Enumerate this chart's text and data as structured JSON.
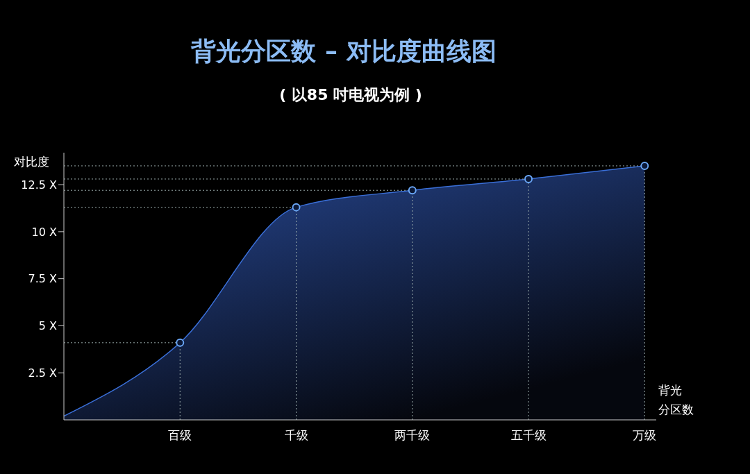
{
  "chart_data": {
    "type": "area",
    "title": "背光分区数 – 对比度曲线图",
    "subtitle": "( 以85 吋电视为例 )",
    "ylabel": "对比度",
    "xlabel": "背光分区数",
    "ref_lines": [
      {
        "axis": "y",
        "value": 4.1,
        "color": "#99aaaa",
        "line_style": "dotted"
      },
      {
        "axis": "y",
        "value": 11.3,
        "color": "#99aaaa",
        "line_style": "dotted"
      },
      {
        "axis": "y",
        "value": 12.2,
        "color": "#99aaaa",
        "line_style": "dotted"
      },
      {
        "axis": "y",
        "value": 12.8,
        "color": "#99aaaa",
        "line_style": "dotted"
      },
      {
        "axis": "y",
        "value": 13.5,
        "color": "#99aaaa",
        "line_style": "dotted"
      },
      {
        "axis": "x",
        "value": "百级",
        "color": "#99aaaa",
        "line_style": "dotted"
      },
      {
        "axis": "x",
        "value": "千级",
        "color": "#99aaaa",
        "line_style": "dotted"
      },
      {
        "axis": "x",
        "value": "两千级",
        "color": "#99aaaa",
        "line_style": "dotted"
      },
      {
        "axis": "x",
        "value": "五千级",
        "color": "#99aaaa",
        "line_style": "dotted"
      },
      {
        "axis": "x",
        "value": "万级",
        "color": "#99aaaa",
        "line_style": "dotted"
      }
    ],
    "categories": [
      null,
      "百级",
      "千级",
      "两千级",
      "五千级",
      "万级"
    ],
    "values": [
      0.2,
      4.1,
      11.3,
      12.2,
      12.8,
      13.5
    ],
    "color": "#3a6fd8",
    "marker": "circle",
    "ylim": [
      0,
      14.2
    ],
    "yticks": [
      {
        "value": 2.5,
        "label": "2.5 X"
      },
      {
        "value": 5,
        "label": "5 X"
      },
      {
        "value": 7.5,
        "label": "7.5 X"
      },
      {
        "value": 10,
        "label": "10 X"
      },
      {
        "value": 12.5,
        "label": "12.5 X"
      }
    ]
  }
}
